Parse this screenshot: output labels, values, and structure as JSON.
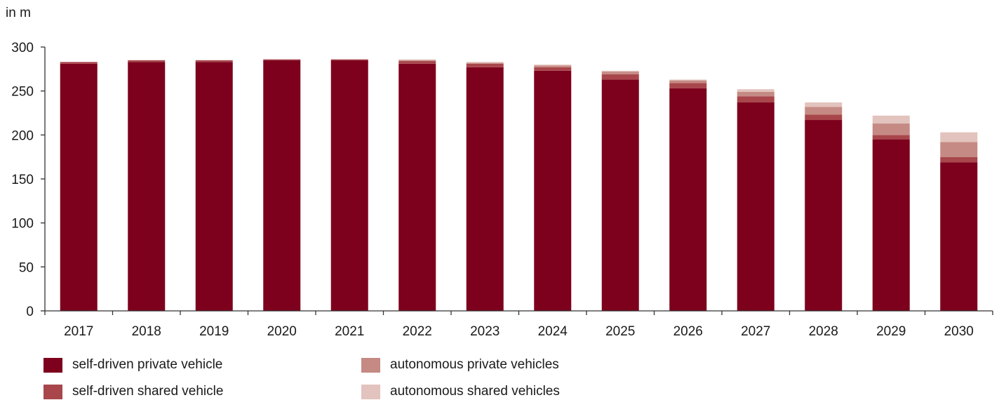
{
  "chart_data": {
    "type": "bar",
    "stacked": true,
    "ylabel": "in m",
    "ylim": [
      0,
      300
    ],
    "yticks": [
      0,
      50,
      100,
      150,
      200,
      250,
      300
    ],
    "categories": [
      "2017",
      "2018",
      "2019",
      "2020",
      "2021",
      "2022",
      "2023",
      "2024",
      "2025",
      "2026",
      "2027",
      "2028",
      "2029",
      "2030"
    ],
    "series": [
      {
        "name": "self-driven private vehicle",
        "color": "#7D001D",
        "values": [
          281,
          283,
          283,
          285,
          285,
          281,
          277,
          273,
          263,
          253,
          237,
          217,
          195,
          169
        ]
      },
      {
        "name": "self-driven shared vehicle",
        "color": "#A8464B",
        "values": [
          2,
          2,
          2,
          1,
          1,
          3,
          4,
          4,
          6,
          6,
          7,
          6,
          5,
          6
        ]
      },
      {
        "name": "autonomous private vehicles",
        "color": "#C58A83",
        "values": [
          0,
          0,
          0,
          0,
          0,
          1,
          1,
          2,
          3,
          3,
          5,
          9,
          13,
          17
        ]
      },
      {
        "name": "autonomous shared vehicles",
        "color": "#E3C3BD",
        "values": [
          0,
          0,
          0,
          0,
          0,
          1,
          1,
          1,
          1,
          1,
          3,
          5,
          9,
          11
        ]
      }
    ],
    "legend": "bottom",
    "grid": false
  }
}
